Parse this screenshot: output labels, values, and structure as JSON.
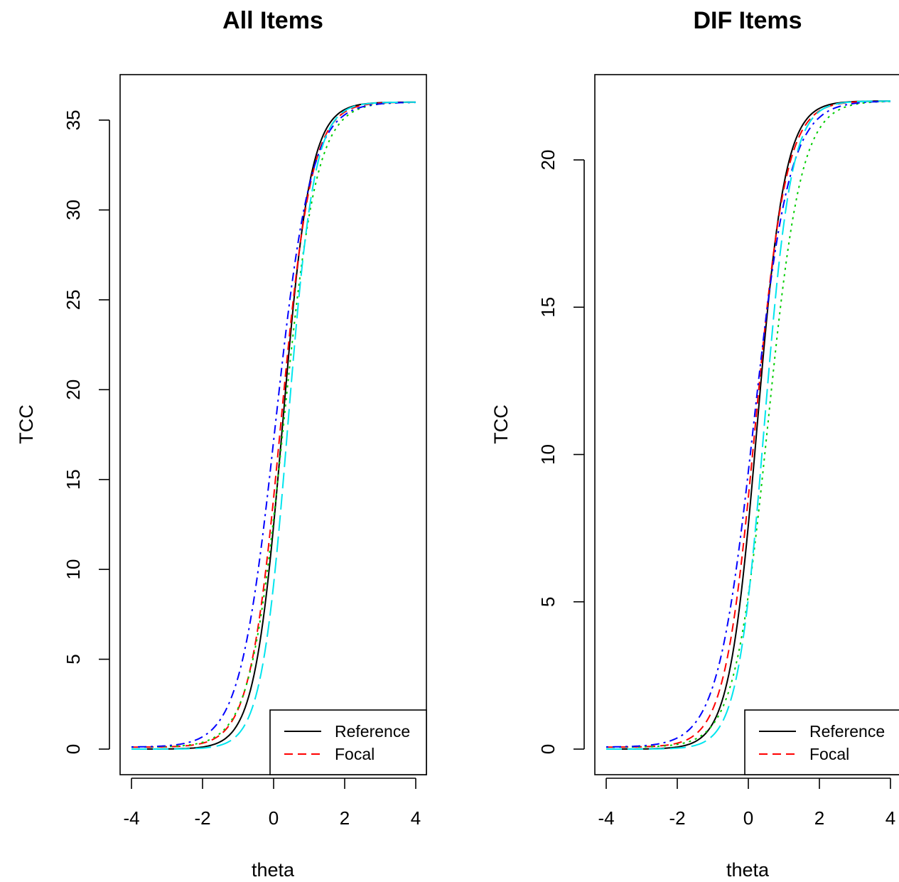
{
  "chart_data": [
    {
      "type": "line",
      "title": "All Items",
      "xlabel": "theta",
      "ylabel": "TCC",
      "xlim": [
        -4,
        4
      ],
      "ylim": [
        0,
        36
      ],
      "xticks": [
        "-4",
        "-2",
        "0",
        "2",
        "4"
      ],
      "yticks": [
        "0",
        "5",
        "10",
        "15",
        "20",
        "25",
        "30",
        "35"
      ],
      "grid": false,
      "legend": {
        "position": "bottom-right",
        "entries": [
          "Reference",
          "Focal"
        ]
      },
      "curve_model": {
        "max": 36,
        "x": [
          -4,
          4
        ]
      },
      "series": [
        {
          "name": "Reference",
          "color": "#000000",
          "dash": "solid",
          "a": 1.5,
          "b": 0.25,
          "c": 0.0
        },
        {
          "name": "Focal",
          "color": "#ff0000",
          "dash": "dashed",
          "a": 1.36,
          "b": 0.2,
          "c": 0.003
        },
        {
          "color": "#00cd00",
          "dash": "dotted",
          "a": 1.26,
          "b": 0.28,
          "c": 0.003
        },
        {
          "color": "#0000ff",
          "dash": "dotdash",
          "a": 1.18,
          "b": 0.05,
          "c": 0.003
        },
        {
          "color": "#00e5ee",
          "dash": "longdash",
          "a": 1.58,
          "b": 0.4,
          "c": 0.0
        }
      ]
    },
    {
      "type": "line",
      "title": "DIF Items",
      "xlabel": "theta",
      "ylabel": "TCC",
      "xlim": [
        -4,
        4
      ],
      "ylim": [
        0,
        22
      ],
      "xticks": [
        "-4",
        "-2",
        "0",
        "2",
        "4"
      ],
      "yticks": [
        "0",
        "5",
        "10",
        "15",
        "20"
      ],
      "grid": false,
      "legend": {
        "position": "bottom-right",
        "entries": [
          "Reference",
          "Focal"
        ]
      },
      "curve_model": {
        "max": 22,
        "x": [
          -4,
          4
        ]
      },
      "series": [
        {
          "name": "Reference",
          "color": "#000000",
          "dash": "solid",
          "a": 1.5,
          "b": 0.25,
          "c": 0.0
        },
        {
          "name": "Focal",
          "color": "#ff0000",
          "dash": "dashed",
          "a": 1.36,
          "b": 0.2,
          "c": 0.003
        },
        {
          "color": "#00cd00",
          "dash": "dotted",
          "a": 1.26,
          "b": 0.55,
          "c": 0.003
        },
        {
          "color": "#0000ff",
          "dash": "dotdash",
          "a": 1.16,
          "b": 0.15,
          "c": 0.003
        },
        {
          "color": "#00e5ee",
          "dash": "longdash",
          "a": 1.56,
          "b": 0.45,
          "c": 0.0
        }
      ]
    }
  ]
}
